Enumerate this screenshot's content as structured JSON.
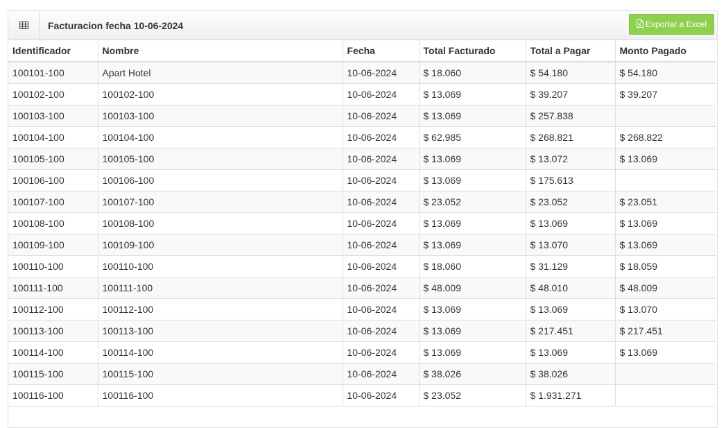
{
  "widget": {
    "icon": "table-icon",
    "title": "Facturacion fecha 10-06-2024",
    "export_label": "Exportar a Excel",
    "export_icon": "excel-file-icon",
    "export_color": "#8fd14e"
  },
  "table": {
    "headers": [
      "Identificador",
      "Nombre",
      "Fecha",
      "Total Facturado",
      "Total a Pagar",
      "Monto Pagado"
    ],
    "rows": [
      [
        "100101-100",
        "Apart Hotel",
        "10-06-2024",
        "$ 18.060",
        "$ 54.180",
        "$ 54.180"
      ],
      [
        "100102-100",
        "100102-100",
        "10-06-2024",
        "$ 13.069",
        "$ 39.207",
        "$ 39.207"
      ],
      [
        "100103-100",
        "100103-100",
        "10-06-2024",
        "$ 13.069",
        "$ 257.838",
        ""
      ],
      [
        "100104-100",
        "100104-100",
        "10-06-2024",
        "$ 62.985",
        "$ 268.821",
        "$ 268.822"
      ],
      [
        "100105-100",
        "100105-100",
        "10-06-2024",
        "$ 13.069",
        "$ 13.072",
        "$ 13.069"
      ],
      [
        "100106-100",
        "100106-100",
        "10-06-2024",
        "$ 13.069",
        "$ 175.613",
        ""
      ],
      [
        "100107-100",
        "100107-100",
        "10-06-2024",
        "$ 23.052",
        "$ 23.052",
        "$ 23.051"
      ],
      [
        "100108-100",
        "100108-100",
        "10-06-2024",
        "$ 13.069",
        "$ 13.069",
        "$ 13.069"
      ],
      [
        "100109-100",
        "100109-100",
        "10-06-2024",
        "$ 13.069",
        "$ 13.070",
        "$ 13.069"
      ],
      [
        "100110-100",
        "100110-100",
        "10-06-2024",
        "$ 18.060",
        "$ 31.129",
        "$ 18.059"
      ],
      [
        "100111-100",
        "100111-100",
        "10-06-2024",
        "$ 48.009",
        "$ 48.010",
        "$ 48.009"
      ],
      [
        "100112-100",
        "100112-100",
        "10-06-2024",
        "$ 13.069",
        "$ 13.069",
        "$ 13.070"
      ],
      [
        "100113-100",
        "100113-100",
        "10-06-2024",
        "$ 13.069",
        "$ 217.451",
        "$ 217.451"
      ],
      [
        "100114-100",
        "100114-100",
        "10-06-2024",
        "$ 13.069",
        "$ 13.069",
        "$ 13.069"
      ],
      [
        "100115-100",
        "100115-100",
        "10-06-2024",
        "$ 38.026",
        "$ 38.026",
        ""
      ],
      [
        "100116-100",
        "100116-100",
        "10-06-2024",
        "$ 23.052",
        "$ 1.931.271",
        ""
      ]
    ]
  }
}
